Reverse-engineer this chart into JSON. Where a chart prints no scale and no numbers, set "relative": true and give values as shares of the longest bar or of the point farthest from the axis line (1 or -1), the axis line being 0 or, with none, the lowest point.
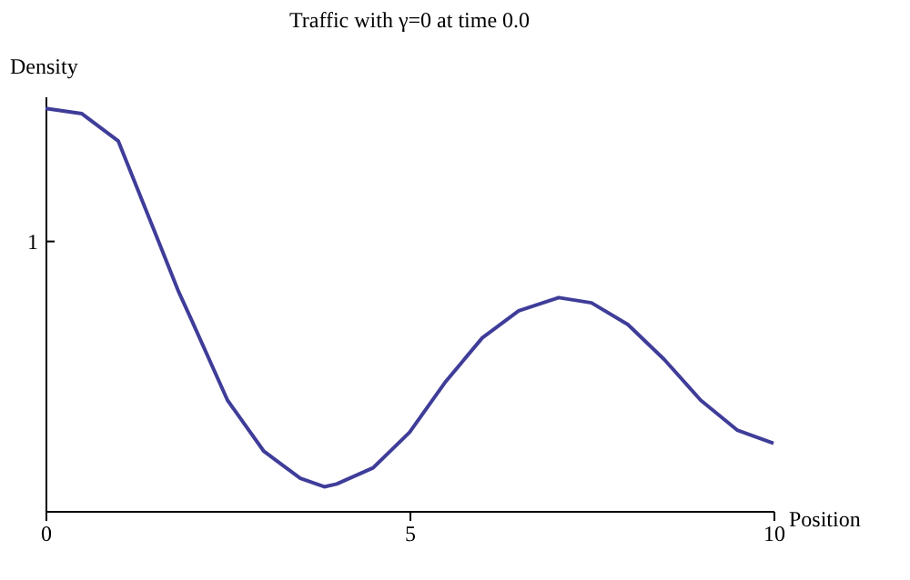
{
  "chart_data": {
    "type": "line",
    "title": "Traffic with γ=0 at time  0.0",
    "xlabel": "Position",
    "ylabel": "Density",
    "x": [
      0,
      0.5,
      1,
      1.55,
      1.83,
      2,
      2.5,
      3,
      3.5,
      3.83,
      4,
      4.5,
      5,
      5.5,
      6,
      6.5,
      7.05,
      7.5,
      8,
      8.5,
      9,
      9.5,
      10
    ],
    "series": [
      {
        "color": "#3f3d99",
        "values": [
          1,
          0.987,
          0.919,
          0.671,
          0.544,
          0.477,
          0.275,
          0.148,
          0.081,
          0.06,
          0.067,
          0.107,
          0.195,
          0.322,
          0.43,
          0.497,
          0.53,
          0.517,
          0.463,
          0.376,
          0.275,
          0.201,
          0.168
        ]
      }
    ],
    "relative": true,
    "annotations": [
      "1"
    ],
    "xlim": [
      0,
      10
    ],
    "xticks": [
      0,
      5,
      10
    ],
    "grid": false,
    "legend": false,
    "marker": "none",
    "line_style": "solid"
  }
}
